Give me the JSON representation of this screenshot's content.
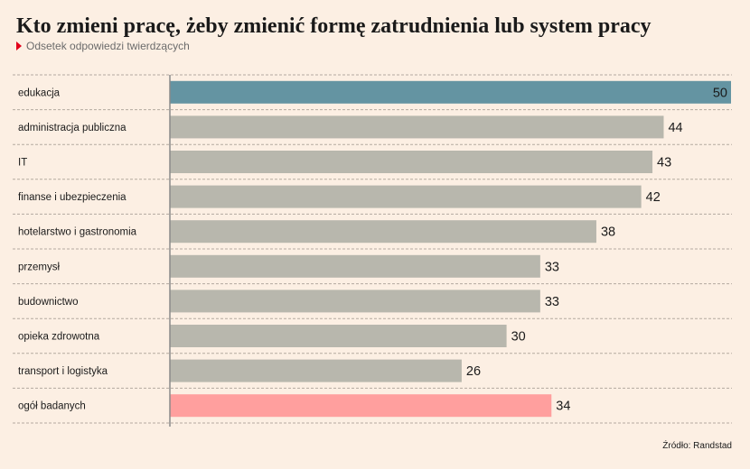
{
  "header": {
    "title": "Kto zmieni pracę, żeby zmienić formę zatrudnienia lub system pracy",
    "subtitle": "Odsetek odpowiedzi twierdzących"
  },
  "source": "Źródło: Randstad",
  "colors": {
    "highlight": "#6494a2",
    "default": "#b8b7ad",
    "total": "#ff9f9e",
    "background": "#fcefe3"
  },
  "chart_data": {
    "type": "bar",
    "orientation": "horizontal",
    "categories": [
      "edukacja",
      "administracja publiczna",
      "IT",
      "finanse i ubezpieczenia",
      "hotelarstwo i gastronomia",
      "przemysł",
      "budownictwo",
      "opieka zdrowotna",
      "transport i logistyka",
      "ogół badanych"
    ],
    "values": [
      50,
      44,
      43,
      42,
      38,
      33,
      33,
      30,
      26,
      34
    ],
    "bar_styles": [
      "highlight",
      "default",
      "default",
      "default",
      "default",
      "default",
      "default",
      "default",
      "default",
      "total"
    ],
    "xlim": [
      0,
      50
    ],
    "title": "Kto zmieni pracę, żeby zmienić formę zatrudnienia lub system pracy",
    "subtitle": "Odsetek odpowiedzi twierdzących",
    "xlabel": "",
    "ylabel": "",
    "grid": false,
    "data_labels": true
  }
}
